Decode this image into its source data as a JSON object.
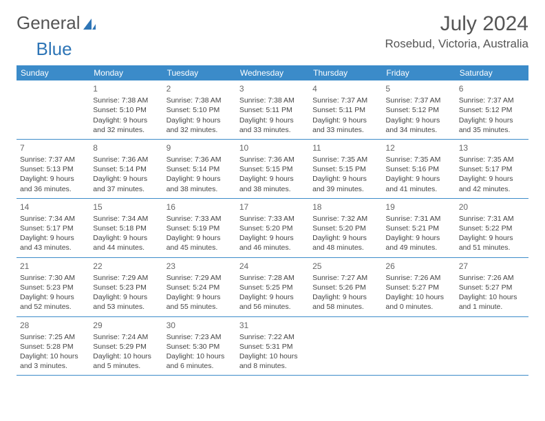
{
  "logo": {
    "text1": "General",
    "text2": "Blue"
  },
  "title": "July 2024",
  "location": "Rosebud, Victoria, Australia",
  "colors": {
    "header_bg": "#3b8bc9",
    "header_text": "#ffffff",
    "border": "#3b8bc9",
    "text": "#444444",
    "title_text": "#555555"
  },
  "weekdays": [
    "Sunday",
    "Monday",
    "Tuesday",
    "Wednesday",
    "Thursday",
    "Friday",
    "Saturday"
  ],
  "weeks": [
    [
      null,
      {
        "d": "1",
        "sr": "7:38 AM",
        "ss": "5:10 PM",
        "dl": "9 hours and 32 minutes."
      },
      {
        "d": "2",
        "sr": "7:38 AM",
        "ss": "5:10 PM",
        "dl": "9 hours and 32 minutes."
      },
      {
        "d": "3",
        "sr": "7:38 AM",
        "ss": "5:11 PM",
        "dl": "9 hours and 33 minutes."
      },
      {
        "d": "4",
        "sr": "7:37 AM",
        "ss": "5:11 PM",
        "dl": "9 hours and 33 minutes."
      },
      {
        "d": "5",
        "sr": "7:37 AM",
        "ss": "5:12 PM",
        "dl": "9 hours and 34 minutes."
      },
      {
        "d": "6",
        "sr": "7:37 AM",
        "ss": "5:12 PM",
        "dl": "9 hours and 35 minutes."
      }
    ],
    [
      {
        "d": "7",
        "sr": "7:37 AM",
        "ss": "5:13 PM",
        "dl": "9 hours and 36 minutes."
      },
      {
        "d": "8",
        "sr": "7:36 AM",
        "ss": "5:14 PM",
        "dl": "9 hours and 37 minutes."
      },
      {
        "d": "9",
        "sr": "7:36 AM",
        "ss": "5:14 PM",
        "dl": "9 hours and 38 minutes."
      },
      {
        "d": "10",
        "sr": "7:36 AM",
        "ss": "5:15 PM",
        "dl": "9 hours and 38 minutes."
      },
      {
        "d": "11",
        "sr": "7:35 AM",
        "ss": "5:15 PM",
        "dl": "9 hours and 39 minutes."
      },
      {
        "d": "12",
        "sr": "7:35 AM",
        "ss": "5:16 PM",
        "dl": "9 hours and 41 minutes."
      },
      {
        "d": "13",
        "sr": "7:35 AM",
        "ss": "5:17 PM",
        "dl": "9 hours and 42 minutes."
      }
    ],
    [
      {
        "d": "14",
        "sr": "7:34 AM",
        "ss": "5:17 PM",
        "dl": "9 hours and 43 minutes."
      },
      {
        "d": "15",
        "sr": "7:34 AM",
        "ss": "5:18 PM",
        "dl": "9 hours and 44 minutes."
      },
      {
        "d": "16",
        "sr": "7:33 AM",
        "ss": "5:19 PM",
        "dl": "9 hours and 45 minutes."
      },
      {
        "d": "17",
        "sr": "7:33 AM",
        "ss": "5:20 PM",
        "dl": "9 hours and 46 minutes."
      },
      {
        "d": "18",
        "sr": "7:32 AM",
        "ss": "5:20 PM",
        "dl": "9 hours and 48 minutes."
      },
      {
        "d": "19",
        "sr": "7:31 AM",
        "ss": "5:21 PM",
        "dl": "9 hours and 49 minutes."
      },
      {
        "d": "20",
        "sr": "7:31 AM",
        "ss": "5:22 PM",
        "dl": "9 hours and 51 minutes."
      }
    ],
    [
      {
        "d": "21",
        "sr": "7:30 AM",
        "ss": "5:23 PM",
        "dl": "9 hours and 52 minutes."
      },
      {
        "d": "22",
        "sr": "7:29 AM",
        "ss": "5:23 PM",
        "dl": "9 hours and 53 minutes."
      },
      {
        "d": "23",
        "sr": "7:29 AM",
        "ss": "5:24 PM",
        "dl": "9 hours and 55 minutes."
      },
      {
        "d": "24",
        "sr": "7:28 AM",
        "ss": "5:25 PM",
        "dl": "9 hours and 56 minutes."
      },
      {
        "d": "25",
        "sr": "7:27 AM",
        "ss": "5:26 PM",
        "dl": "9 hours and 58 minutes."
      },
      {
        "d": "26",
        "sr": "7:26 AM",
        "ss": "5:27 PM",
        "dl": "10 hours and 0 minutes."
      },
      {
        "d": "27",
        "sr": "7:26 AM",
        "ss": "5:27 PM",
        "dl": "10 hours and 1 minute."
      }
    ],
    [
      {
        "d": "28",
        "sr": "7:25 AM",
        "ss": "5:28 PM",
        "dl": "10 hours and 3 minutes."
      },
      {
        "d": "29",
        "sr": "7:24 AM",
        "ss": "5:29 PM",
        "dl": "10 hours and 5 minutes."
      },
      {
        "d": "30",
        "sr": "7:23 AM",
        "ss": "5:30 PM",
        "dl": "10 hours and 6 minutes."
      },
      {
        "d": "31",
        "sr": "7:22 AM",
        "ss": "5:31 PM",
        "dl": "10 hours and 8 minutes."
      },
      null,
      null,
      null
    ]
  ],
  "labels": {
    "sunrise": "Sunrise:",
    "sunset": "Sunset:",
    "daylight": "Daylight:"
  }
}
